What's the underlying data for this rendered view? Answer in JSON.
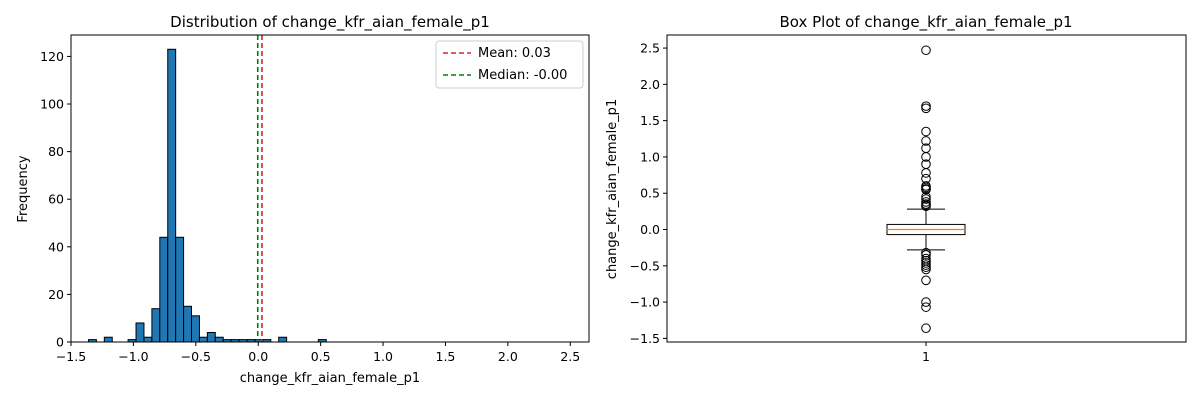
{
  "chart_data": [
    {
      "type": "bar",
      "title": "Distribution of change_kfr_aian_female_p1",
      "xlabel": "change_kfr_aian_female_p1",
      "ylabel": "Frequency",
      "xlim": [
        -1.5,
        2.65
      ],
      "ylim": [
        0,
        129
      ],
      "xticks": [
        -1.5,
        -1.0,
        -0.5,
        0.0,
        0.5,
        1.0,
        1.5,
        2.0,
        2.5
      ],
      "xtick_labels": [
        "−1.5",
        "−1.0",
        "−0.5",
        "0.0",
        "0.5",
        "1.0",
        "1.5",
        "2.0",
        "2.5"
      ],
      "yticks": [
        0,
        20,
        40,
        60,
        80,
        100,
        120
      ],
      "bin_start": -1.36,
      "bin_width": 0.0635,
      "counts": [
        1,
        0,
        2,
        0,
        0,
        1,
        8,
        2,
        14,
        44,
        123,
        44,
        15,
        11,
        2,
        4,
        2,
        1,
        1,
        1,
        1,
        1,
        1,
        0,
        2,
        0,
        0,
        0,
        0,
        1
      ],
      "bar_color": "#1f77b4",
      "lines": [
        {
          "label": "Mean: 0.03",
          "x": 0.03,
          "color": "#d62728",
          "style": "dashed"
        },
        {
          "label": "Median: -0.00",
          "x": -0.004,
          "color": "#008000",
          "style": "dashed"
        }
      ],
      "legend_position": "top-right",
      "grid": false
    },
    {
      "type": "box",
      "title": "Box Plot of change_kfr_aian_female_p1",
      "ylabel": "change_kfr_aian_female_p1",
      "category": "1",
      "ylim": [
        -1.55,
        2.68
      ],
      "yticks": [
        -1.5,
        -1.0,
        -0.5,
        0.0,
        0.5,
        1.0,
        1.5,
        2.0,
        2.5
      ],
      "ytick_labels": [
        "−1.5",
        "−1.0",
        "−0.5",
        "0.0",
        "0.5",
        "1.0",
        "1.5",
        "2.0",
        "2.5"
      ],
      "q1": -0.07,
      "median": 0.0,
      "q3": 0.07,
      "whisker_low": -0.28,
      "whisker_high": 0.28,
      "median_color": "#ff7f0e",
      "outliers": [
        2.47,
        1.7,
        1.67,
        1.35,
        1.22,
        1.12,
        1.0,
        0.9,
        0.78,
        0.7,
        0.6,
        0.58,
        0.56,
        0.55,
        0.45,
        0.42,
        0.38,
        0.35,
        0.33,
        0.32,
        -0.32,
        -0.35,
        -0.4,
        -0.43,
        -0.46,
        -0.49,
        -0.52,
        -0.55,
        -0.7,
        -1.0,
        -1.07,
        -1.36
      ],
      "grid": false
    }
  ]
}
